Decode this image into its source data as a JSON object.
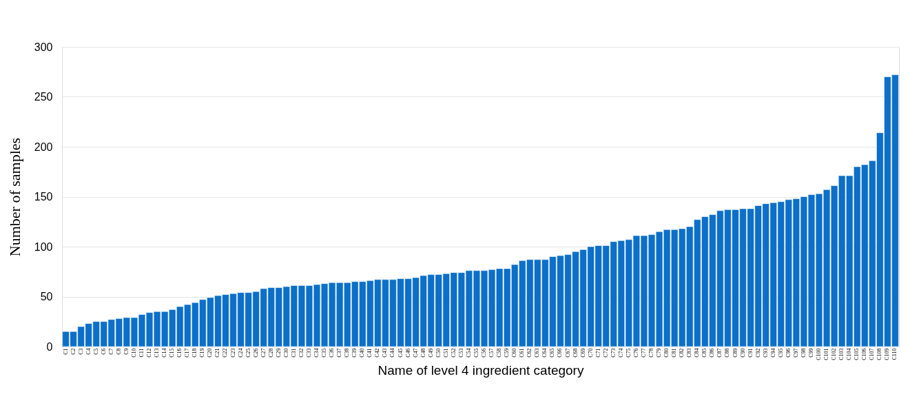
{
  "chart_data": {
    "type": "bar",
    "xlabel": "Name of level 4 ingredient category",
    "ylabel": "Number of samples",
    "categories": [
      "C1",
      "C2",
      "C3",
      "C4",
      "C5",
      "C6",
      "C7",
      "C8",
      "C9",
      "C10",
      "C11",
      "C12",
      "C13",
      "C14",
      "C15",
      "C16",
      "C17",
      "C18",
      "C19",
      "C20",
      "C21",
      "C22",
      "C23",
      "C24",
      "C25",
      "C26",
      "C27",
      "C28",
      "C29",
      "C30",
      "C31",
      "C32",
      "C33",
      "C34",
      "C35",
      "C36",
      "C37",
      "C38",
      "C39",
      "C40",
      "C41",
      "C42",
      "C43",
      "C44",
      "C45",
      "C46",
      "C47",
      "C48",
      "C49",
      "C50",
      "C51",
      "C52",
      "C53",
      "C54",
      "C55",
      "C56",
      "C57",
      "C58",
      "C59",
      "C60",
      "C61",
      "C62",
      "C63",
      "C64",
      "C65",
      "C66",
      "C67",
      "C68",
      "C69",
      "C70",
      "C71",
      "C72",
      "C73",
      "C74",
      "C75",
      "C76",
      "C77",
      "C78",
      "C79",
      "C80",
      "C81",
      "C82",
      "C83",
      "C84",
      "C85",
      "C86",
      "C87",
      "C88",
      "C89",
      "C90",
      "C91",
      "C92",
      "C93",
      "C94",
      "C95",
      "C96",
      "C97",
      "C98",
      "C99",
      "C100",
      "C101",
      "C102",
      "C103",
      "C104",
      "C105",
      "C106",
      "C107",
      "C108",
      "C109",
      "C110"
    ],
    "values": [
      15,
      15,
      20,
      23,
      25,
      25,
      27,
      28,
      29,
      29,
      32,
      34,
      35,
      35,
      37,
      40,
      42,
      44,
      47,
      49,
      51,
      52,
      53,
      54,
      54,
      55,
      58,
      59,
      59,
      60,
      61,
      61,
      61,
      62,
      63,
      64,
      64,
      64,
      65,
      65,
      66,
      67,
      67,
      67,
      68,
      68,
      69,
      71,
      72,
      72,
      73,
      74,
      74,
      76,
      76,
      76,
      77,
      78,
      78,
      82,
      86,
      87,
      87,
      87,
      90,
      91,
      92,
      95,
      97,
      100,
      101,
      101,
      105,
      106,
      107,
      111,
      111,
      112,
      115,
      117,
      117,
      118,
      120,
      127,
      130,
      132,
      136,
      137,
      137,
      138,
      138,
      141,
      143,
      144,
      145,
      147,
      148,
      150,
      152,
      153,
      157,
      161,
      171,
      171,
      180,
      182,
      186,
      214,
      270,
      272
    ],
    "color": "#0c6fc8",
    "ylim": [
      0,
      300
    ],
    "yticks": [
      0,
      50,
      100,
      150,
      200,
      250,
      300
    ],
    "grid": "y"
  }
}
